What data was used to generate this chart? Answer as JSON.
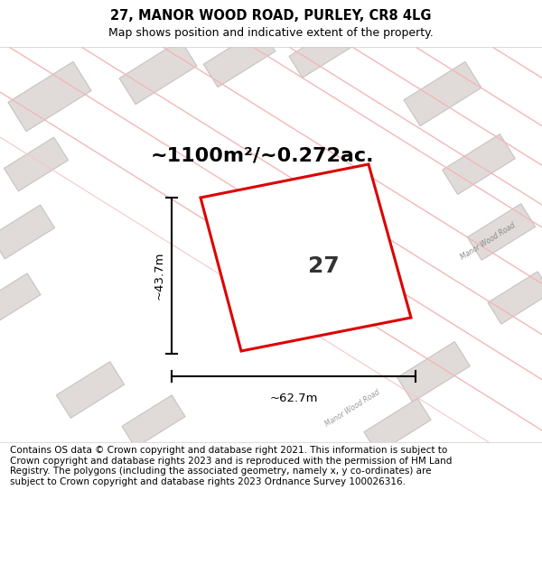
{
  "title": "27, MANOR WOOD ROAD, PURLEY, CR8 4LG",
  "subtitle": "Map shows position and indicative extent of the property.",
  "area_label": "~1100m²/~0.272ac.",
  "plot_number": "27",
  "width_label": "~62.7m",
  "height_label": "~43.7m",
  "footer": "Contains OS data © Crown copyright and database right 2021. This information is subject to Crown copyright and database rights 2023 and is reproduced with the permission of HM Land Registry. The polygons (including the associated geometry, namely x, y co-ordinates) are subject to Crown copyright and database rights 2023 Ordnance Survey 100026316.",
  "map_bg": "#ffffff",
  "building_fill": "#e0dbd8",
  "building_edge": "#c8c3c0",
  "road_line_color": "#f0a0a0",
  "road_line_color2": "#e08080",
  "plot_edge_color": "#dd0000",
  "title_fontsize": 10.5,
  "subtitle_fontsize": 9,
  "footer_fontsize": 7.5,
  "area_fontsize": 16,
  "plot_num_fontsize": 18,
  "dim_fontsize": 9.5
}
